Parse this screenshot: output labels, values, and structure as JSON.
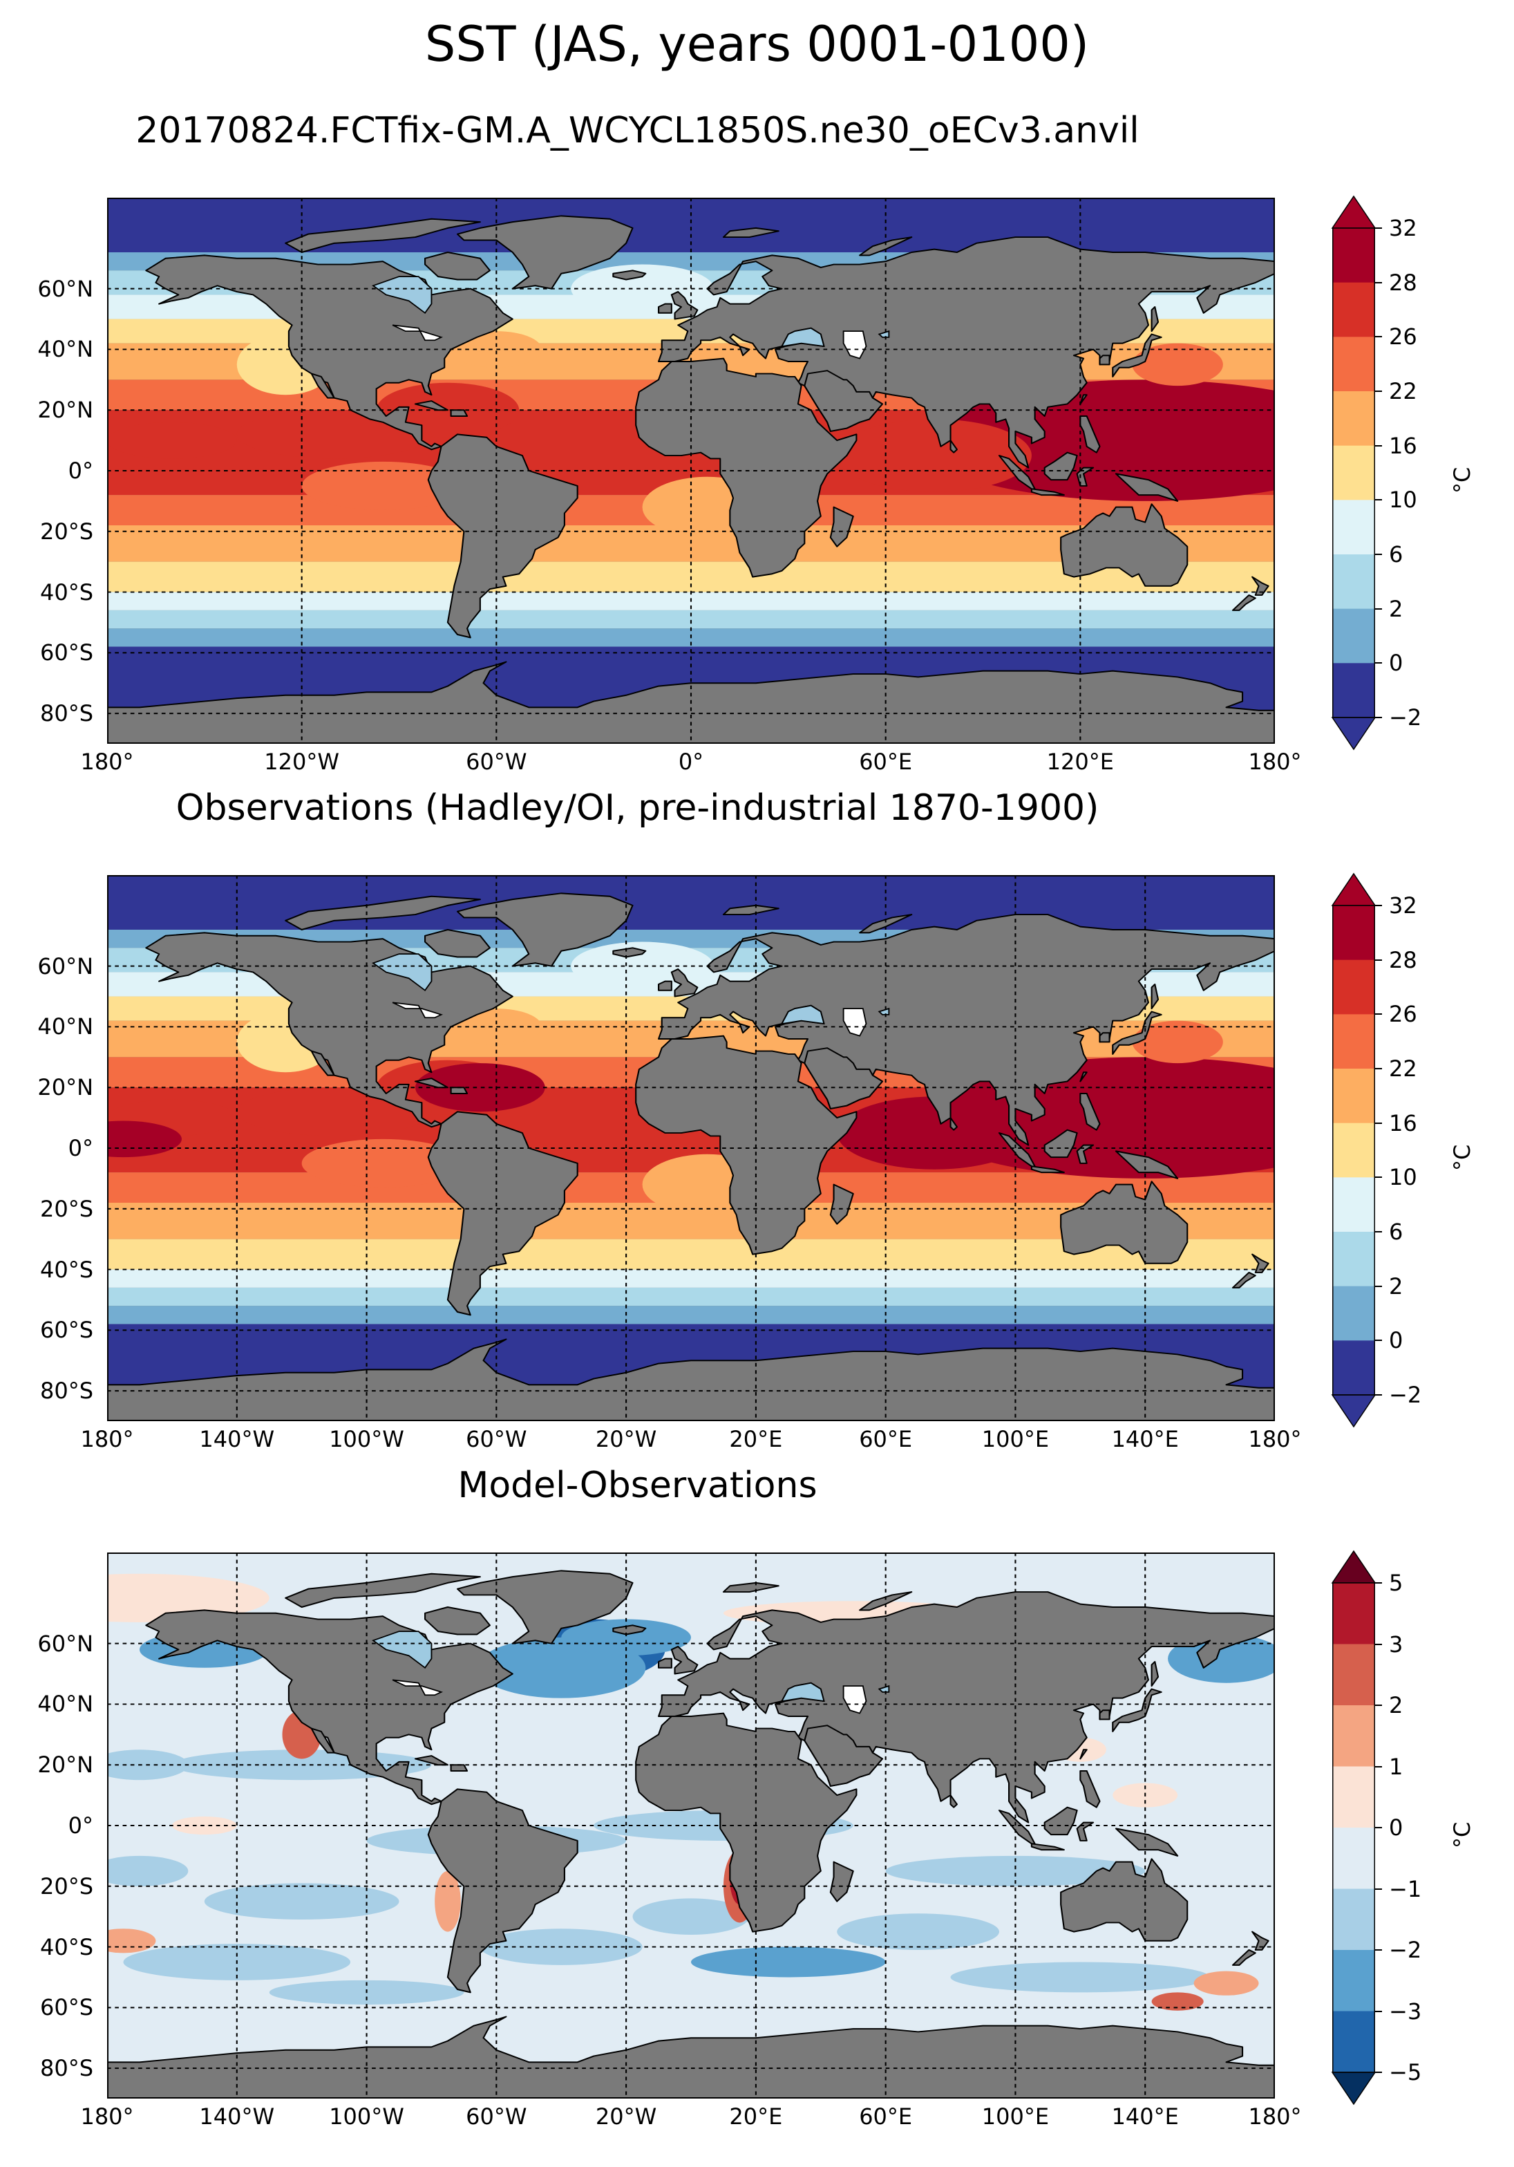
{
  "figure": {
    "title": "SST (JAS, years 0001-0100)"
  },
  "panels": [
    {
      "title": "20170824.FCTfix-GM.A_WCYCL1850S.ne30_oECv3.anvil",
      "field": "model",
      "lat_labels": [
        "60°N",
        "40°N",
        "20°N",
        "0°",
        "20°S",
        "40°S",
        "60°S",
        "80°S"
      ],
      "lon_labels": [
        "180°",
        "120°W",
        "60°W",
        "0°",
        "60°E",
        "120°E",
        "180°"
      ],
      "colorbar": {
        "unit": "°C",
        "ticks": [
          "32",
          "28",
          "26",
          "22",
          "16",
          "10",
          "6",
          "2",
          "0",
          "−2"
        ],
        "colors": [
          "#a50026",
          "#d73027",
          "#f46d43",
          "#fdae61",
          "#fee090",
          "#e0f3f8",
          "#abd9e9",
          "#74add1",
          "#313695"
        ],
        "extend": "both",
        "over_color": "#a50026",
        "under_color": "#313695"
      }
    },
    {
      "title": "Observations (Hadley/OI, pre-industrial 1870-1900)",
      "field": "obs",
      "lat_labels": [
        "60°N",
        "40°N",
        "20°N",
        "0°",
        "20°S",
        "40°S",
        "60°S",
        "80°S"
      ],
      "lon_labels": [
        "180°",
        "140°W",
        "100°W",
        "60°W",
        "20°W",
        "20°E",
        "60°E",
        "100°E",
        "140°E",
        "180°"
      ],
      "colorbar": {
        "unit": "°C",
        "ticks": [
          "32",
          "28",
          "26",
          "22",
          "16",
          "10",
          "6",
          "2",
          "0",
          "−2"
        ],
        "colors": [
          "#a50026",
          "#d73027",
          "#f46d43",
          "#fdae61",
          "#fee090",
          "#e0f3f8",
          "#abd9e9",
          "#74add1",
          "#313695"
        ],
        "extend": "both",
        "over_color": "#a50026",
        "under_color": "#313695"
      }
    },
    {
      "title": "Model-Observations",
      "field": "diff",
      "lat_labels": [
        "60°N",
        "40°N",
        "20°N",
        "0°",
        "20°S",
        "40°S",
        "60°S",
        "80°S"
      ],
      "lon_labels": [
        "180°",
        "140°W",
        "100°W",
        "60°W",
        "20°W",
        "20°E",
        "60°E",
        "100°E",
        "140°E",
        "180°"
      ],
      "colorbar": {
        "unit": "°C",
        "ticks": [
          "5",
          "3",
          "2",
          "1",
          "0",
          "−1",
          "−2",
          "−3",
          "−5"
        ],
        "colors": [
          "#b2182b",
          "#d6604d",
          "#f4a582",
          "#fbe3d6",
          "#e1ecf4",
          "#a8cfe6",
          "#5aa1cf",
          "#2166ac"
        ],
        "extend": "both",
        "over_color": "#67001f",
        "under_color": "#053061"
      }
    }
  ],
  "map_style": {
    "land_color": "#7a7a7a",
    "coastline_color": "#000000",
    "gridline_style": "dotted black",
    "projection": "PlateCarree, lon -180..180, lat -90..90 (no 90° labels)"
  }
}
